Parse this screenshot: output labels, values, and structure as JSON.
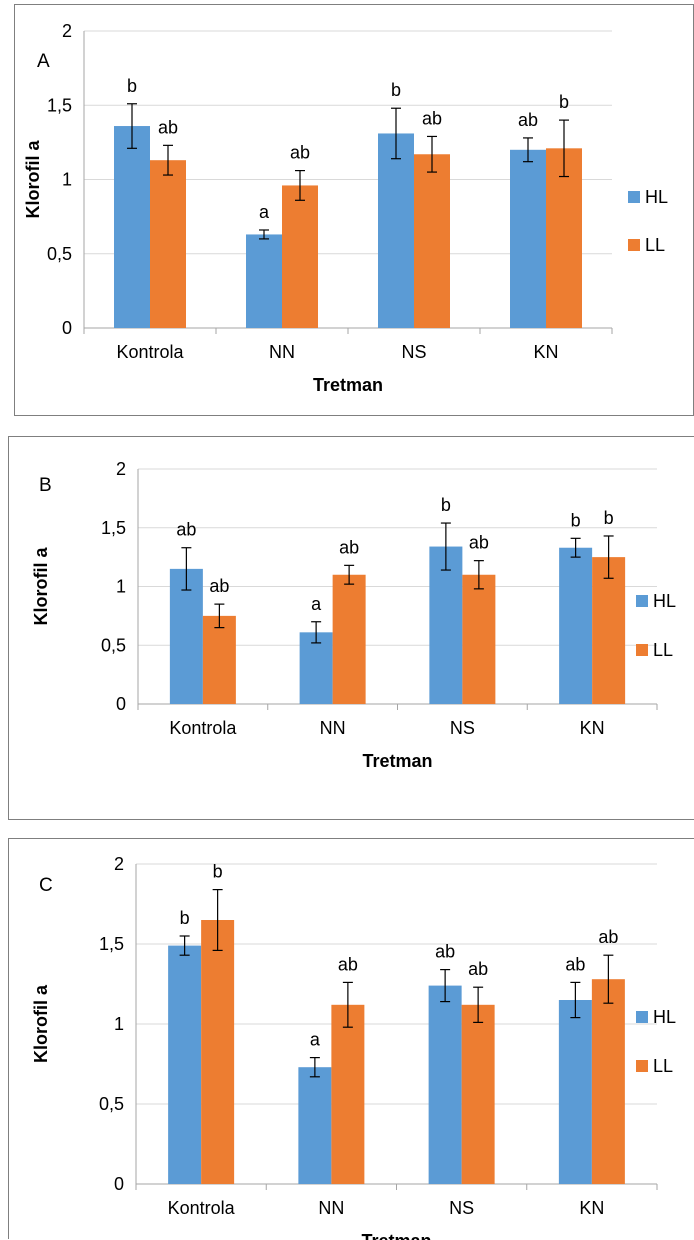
{
  "chart_data": [
    {
      "type": "bar",
      "panel_label": "A",
      "xlabel": "Tretman",
      "ylabel": "Klorofil a",
      "categories": [
        "Kontrola",
        "NN",
        "NS",
        "KN"
      ],
      "ylim": [
        0,
        2
      ],
      "yticks": [
        "0",
        "0,5",
        "1",
        "1,5",
        "2"
      ],
      "grid": true,
      "legend_position": "right",
      "series": [
        {
          "name": "HL",
          "color": "#5b9bd5",
          "values": [
            1.36,
            0.63,
            1.31,
            1.2
          ],
          "errors": [
            0.15,
            0.03,
            0.17,
            0.08
          ],
          "labels": [
            "b",
            "a",
            "b",
            "ab"
          ]
        },
        {
          "name": "LL",
          "color": "#ed7d31",
          "values": [
            1.13,
            0.96,
            1.17,
            1.21
          ],
          "errors": [
            0.1,
            0.1,
            0.12,
            0.19
          ],
          "labels": [
            "ab",
            "ab",
            "ab",
            "b"
          ]
        }
      ]
    },
    {
      "type": "bar",
      "panel_label": "B",
      "xlabel": "Tretman",
      "ylabel": "Klorofil a",
      "categories": [
        "Kontrola",
        "NN",
        "NS",
        "KN"
      ],
      "ylim": [
        0,
        2
      ],
      "yticks": [
        "0",
        "0,5",
        "1",
        "1,5",
        "2"
      ],
      "grid": true,
      "legend_position": "right",
      "series": [
        {
          "name": "HL",
          "color": "#5b9bd5",
          "values": [
            1.15,
            0.61,
            1.34,
            1.33
          ],
          "errors": [
            0.18,
            0.09,
            0.2,
            0.08
          ],
          "labels": [
            "ab",
            "a",
            "b",
            "b"
          ]
        },
        {
          "name": "LL",
          "color": "#ed7d31",
          "values": [
            0.75,
            1.1,
            1.1,
            1.25
          ],
          "errors": [
            0.1,
            0.08,
            0.12,
            0.18
          ],
          "labels": [
            "ab",
            "ab",
            "ab",
            "b"
          ]
        }
      ]
    },
    {
      "type": "bar",
      "panel_label": "C",
      "xlabel": "Tretman",
      "ylabel": "Klorofil a",
      "categories": [
        "Kontrola",
        "NN",
        "NS",
        "KN"
      ],
      "ylim": [
        0,
        2
      ],
      "yticks": [
        "0",
        "0,5",
        "1",
        "1,5",
        "2"
      ],
      "grid": true,
      "legend_position": "right",
      "series": [
        {
          "name": "HL",
          "color": "#5b9bd5",
          "values": [
            1.49,
            0.73,
            1.24,
            1.15
          ],
          "errors": [
            0.06,
            0.06,
            0.1,
            0.11
          ],
          "labels": [
            "b",
            "a",
            "ab",
            "ab"
          ]
        },
        {
          "name": "LL",
          "color": "#ed7d31",
          "values": [
            1.65,
            1.12,
            1.12,
            1.28
          ],
          "errors": [
            0.19,
            0.14,
            0.11,
            0.15
          ],
          "labels": [
            "b",
            "ab",
            "ab",
            "ab"
          ]
        }
      ]
    }
  ]
}
